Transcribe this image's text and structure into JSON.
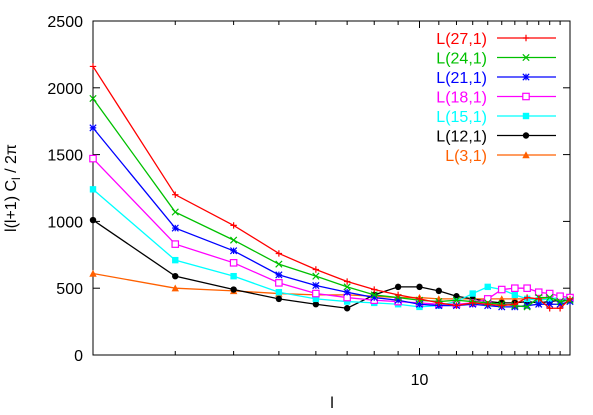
{
  "chart_data": {
    "type": "line",
    "title": "",
    "xlabel": "l",
    "ylabel": "l(l+1) C_l / 2π",
    "ylabel_parts": [
      "l(l+1) C",
      "l",
      " / 2π"
    ],
    "xscale": "log",
    "xlim": [
      2,
      21
    ],
    "ylim": [
      0,
      2500
    ],
    "x_ticks": [
      10
    ],
    "x_tick_labels": [
      "10"
    ],
    "y_ticks": [
      0,
      500,
      1000,
      1500,
      2000,
      2500
    ],
    "y_tick_labels": [
      "0",
      "500",
      "1000",
      "1500",
      "2000",
      "2500"
    ],
    "grid": false,
    "legend_position": "top-right",
    "x": [
      2,
      3,
      4,
      5,
      6,
      7,
      8,
      9,
      10,
      11,
      12,
      13,
      14,
      15,
      16,
      17,
      18,
      19,
      20,
      21
    ],
    "series": [
      {
        "name": "L(27,1)",
        "color": "#ff0000",
        "marker": "plus",
        "values": [
          2160,
          1200,
          970,
          760,
          640,
          550,
          490,
          450,
          420,
          390,
          370,
          390,
          380,
          370,
          380,
          430,
          420,
          350,
          350,
          420
        ]
      },
      {
        "name": "L(24,1)",
        "color": "#00c000",
        "marker": "x",
        "values": [
          1920,
          1070,
          860,
          680,
          590,
          510,
          450,
          430,
          410,
          400,
          410,
          400,
          390,
          380,
          370,
          360,
          430,
          430,
          400,
          410
        ]
      },
      {
        "name": "L(21,1)",
        "color": "#0000ff",
        "marker": "star",
        "values": [
          1700,
          950,
          780,
          600,
          520,
          470,
          430,
          410,
          380,
          370,
          370,
          380,
          370,
          360,
          360,
          370,
          380,
          380,
          380,
          400
        ]
      },
      {
        "name": "L(18,1)",
        "color": "#ff00ff",
        "marker": "square",
        "values": [
          1470,
          830,
          690,
          540,
          460,
          430,
          410,
          400,
          390,
          380,
          380,
          390,
          420,
          490,
          500,
          500,
          470,
          460,
          440,
          430
        ]
      },
      {
        "name": "L(15,1)",
        "color": "#00ffff",
        "marker": "filled-square",
        "values": [
          1240,
          710,
          590,
          470,
          420,
          400,
          390,
          380,
          360,
          370,
          400,
          460,
          510,
          490,
          450,
          420,
          410,
          420,
          430,
          410
        ]
      },
      {
        "name": "L(12,1)",
        "color": "#000000",
        "marker": "circle",
        "values": [
          1010,
          590,
          490,
          420,
          380,
          350,
          450,
          510,
          510,
          480,
          440,
          420,
          400,
          390,
          390,
          400,
          390,
          400,
          410,
          410
        ]
      },
      {
        "name": "L(3,1)",
        "color": "#ff6000",
        "marker": "triangle",
        "values": [
          610,
          500,
          480,
          460,
          450,
          450,
          440,
          430,
          430,
          420,
          420,
          420,
          420,
          420,
          420,
          420,
          420,
          420,
          420,
          420
        ]
      }
    ]
  }
}
